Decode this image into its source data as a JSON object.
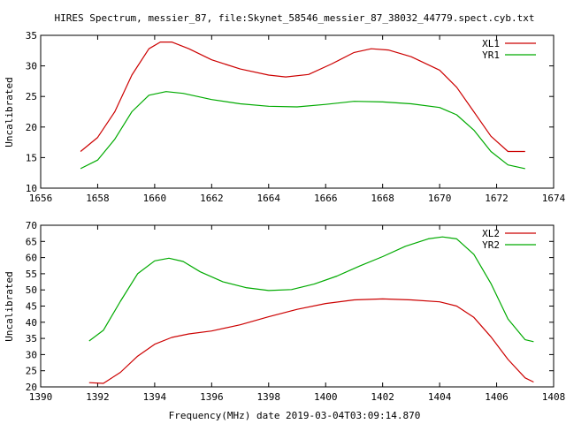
{
  "title": "HIRES Spectrum, messier_87, file:Skynet_58546_messier_87_38032_44779.spect.cyb.txt",
  "xlabel": "Frequency(MHz) date 2019-03-04T03:09:14.870",
  "chart_data": [
    {
      "type": "line",
      "ylabel": "Uncalibrated",
      "xlim": [
        1656,
        1674
      ],
      "ylim": [
        10,
        35
      ],
      "xticks": [
        1656,
        1658,
        1660,
        1662,
        1664,
        1666,
        1668,
        1670,
        1672,
        1674
      ],
      "yticks": [
        10,
        15,
        20,
        25,
        30,
        35
      ],
      "legend": "top-right",
      "series": [
        {
          "name": "XL1",
          "color": "#cc0000",
          "x": [
            1657.4,
            1658.0,
            1658.6,
            1659.2,
            1659.8,
            1660.2,
            1660.6,
            1661.2,
            1662.0,
            1663.0,
            1664.0,
            1664.6,
            1665.4,
            1666.2,
            1667.0,
            1667.6,
            1668.2,
            1669.0,
            1670.0,
            1670.6,
            1671.2,
            1671.8,
            1672.4,
            1673.0
          ],
          "y": [
            16.0,
            18.3,
            22.5,
            28.5,
            32.8,
            33.9,
            33.9,
            32.8,
            31.0,
            29.5,
            28.5,
            28.2,
            28.6,
            30.3,
            32.2,
            32.8,
            32.6,
            31.5,
            29.3,
            26.5,
            22.5,
            18.5,
            16.0,
            16.0
          ]
        },
        {
          "name": "YR1",
          "color": "#00aa00",
          "x": [
            1657.4,
            1658.0,
            1658.6,
            1659.2,
            1659.8,
            1660.4,
            1661.0,
            1662.0,
            1663.0,
            1664.0,
            1665.0,
            1666.0,
            1667.0,
            1668.0,
            1669.0,
            1670.0,
            1670.6,
            1671.2,
            1671.8,
            1672.4,
            1673.0
          ],
          "y": [
            13.2,
            14.6,
            18.0,
            22.5,
            25.2,
            25.8,
            25.5,
            24.5,
            23.8,
            23.4,
            23.3,
            23.7,
            24.2,
            24.1,
            23.8,
            23.2,
            22.0,
            19.5,
            16.0,
            13.8,
            13.2
          ]
        }
      ]
    },
    {
      "type": "line",
      "ylabel": "Uncalibrated",
      "xlim": [
        1390,
        1408
      ],
      "ylim": [
        20,
        70
      ],
      "xticks": [
        1390,
        1392,
        1394,
        1396,
        1398,
        1400,
        1402,
        1404,
        1406,
        1408
      ],
      "yticks": [
        20,
        25,
        30,
        35,
        40,
        45,
        50,
        55,
        60,
        65,
        70
      ],
      "legend": "top-right",
      "series": [
        {
          "name": "XL2",
          "color": "#cc0000",
          "x": [
            1391.7,
            1392.2,
            1392.8,
            1393.4,
            1394.0,
            1394.6,
            1395.2,
            1396.0,
            1397.0,
            1398.0,
            1399.0,
            1400.0,
            1401.0,
            1402.0,
            1403.0,
            1404.0,
            1404.6,
            1405.2,
            1405.8,
            1406.4,
            1407.0,
            1407.3
          ],
          "y": [
            21.3,
            21.1,
            24.5,
            29.5,
            33.2,
            35.3,
            36.4,
            37.3,
            39.2,
            41.7,
            44.0,
            45.8,
            46.9,
            47.2,
            46.9,
            46.3,
            45.0,
            41.5,
            35.5,
            28.5,
            22.8,
            21.5
          ]
        },
        {
          "name": "YR2",
          "color": "#00aa00",
          "x": [
            1391.7,
            1392.2,
            1392.8,
            1393.4,
            1394.0,
            1394.5,
            1395.0,
            1395.6,
            1396.4,
            1397.2,
            1398.0,
            1398.8,
            1399.6,
            1400.4,
            1401.2,
            1402.0,
            1402.8,
            1403.6,
            1404.1,
            1404.6,
            1405.2,
            1405.8,
            1406.4,
            1407.0,
            1407.3
          ],
          "y": [
            34.2,
            37.5,
            46.5,
            55.0,
            59.0,
            59.8,
            58.8,
            55.6,
            52.5,
            50.7,
            49.8,
            50.1,
            51.8,
            54.3,
            57.4,
            60.3,
            63.5,
            65.8,
            66.4,
            65.8,
            61.0,
            52.0,
            41.0,
            34.6,
            34.0
          ]
        }
      ]
    }
  ]
}
